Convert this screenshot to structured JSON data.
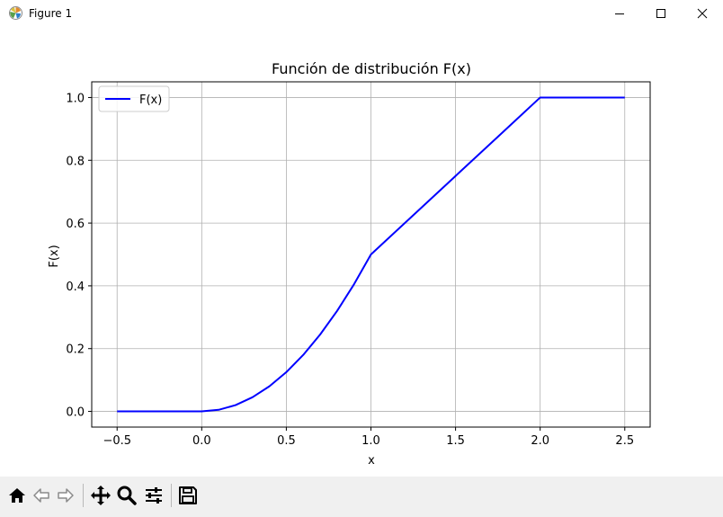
{
  "window": {
    "title": "Figure 1"
  },
  "toolbar": {
    "icons": [
      "home-icon",
      "back-icon",
      "forward-icon",
      "pan-icon",
      "zoom-icon",
      "configure-subplots-icon",
      "save-icon"
    ]
  },
  "chart_data": {
    "type": "line",
    "title": "Función de distribución F(x)",
    "xlabel": "x",
    "ylabel": "F(x)",
    "xlim": [
      -0.65,
      2.65
    ],
    "ylim": [
      -0.05,
      1.05
    ],
    "grid": true,
    "legend_position": "top-left",
    "xticks": [
      "−0.5",
      "0.0",
      "0.5",
      "1.0",
      "1.5",
      "2.0",
      "2.5"
    ],
    "xtick_values": [
      -0.5,
      0.0,
      0.5,
      1.0,
      1.5,
      2.0,
      2.5
    ],
    "yticks": [
      "0.0",
      "0.2",
      "0.4",
      "0.6",
      "0.8",
      "1.0"
    ],
    "ytick_values": [
      0.0,
      0.2,
      0.4,
      0.6,
      0.8,
      1.0
    ],
    "series": [
      {
        "name": "F(x)",
        "color": "#0000ff",
        "x": [
          -0.5,
          -0.25,
          0.0,
          0.1,
          0.2,
          0.3,
          0.4,
          0.5,
          0.6,
          0.7,
          0.8,
          0.9,
          1.0,
          1.25,
          1.5,
          1.75,
          2.0,
          2.25,
          2.5
        ],
        "y": [
          0.0,
          0.0,
          0.0,
          0.005,
          0.02,
          0.045,
          0.08,
          0.125,
          0.18,
          0.245,
          0.32,
          0.405,
          0.5,
          0.625,
          0.75,
          0.875,
          1.0,
          1.0,
          1.0
        ]
      }
    ]
  }
}
